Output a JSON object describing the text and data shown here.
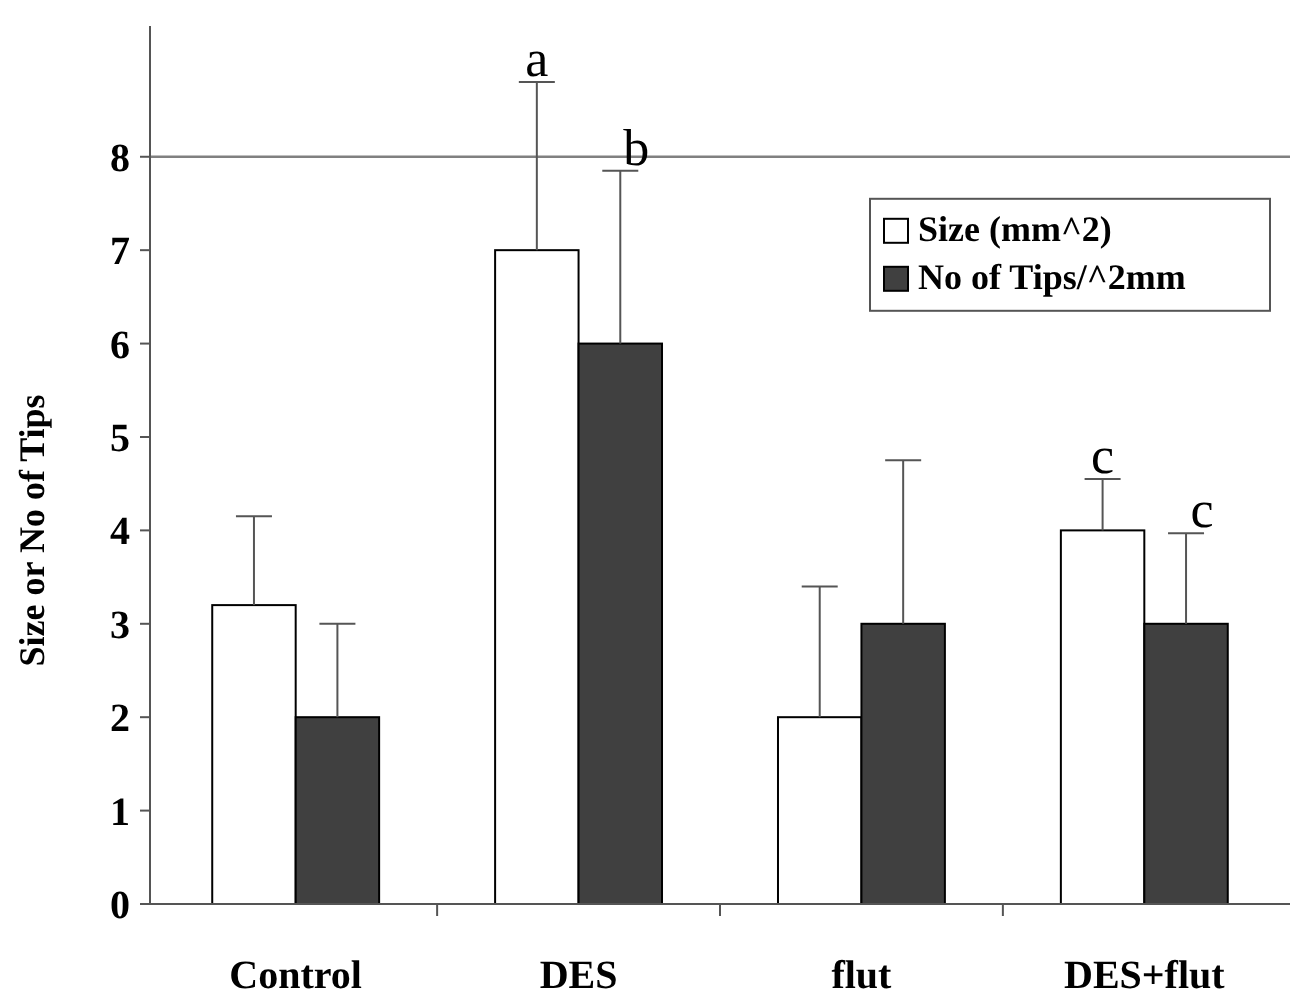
{
  "chart_data": {
    "type": "bar",
    "ylabel": "Size or No of Tips",
    "categories": [
      "Control",
      "DES",
      "flut",
      "DES+flut"
    ],
    "series": [
      {
        "name": "Size (mm^2)",
        "color": "#ffffff",
        "values": [
          3.2,
          7,
          2,
          4
        ],
        "errors": [
          [
            3.2,
            4.15
          ],
          [
            7,
            8.8
          ],
          [
            2,
            3.4
          ],
          [
            4,
            4.55
          ]
        ]
      },
      {
        "name": "No of Tips/^2mm",
        "color": "#404040",
        "values": [
          2,
          6,
          3,
          3
        ],
        "errors": [
          [
            2,
            3
          ],
          [
            6,
            7.85
          ],
          [
            3,
            4.75
          ],
          [
            3,
            3.97
          ]
        ]
      }
    ],
    "ylim": [
      0,
      9.4
    ],
    "yticks": [
      0,
      1,
      2,
      3,
      4,
      5,
      6,
      7,
      8
    ],
    "grid": false,
    "legend": "top right",
    "ref_lines": [
      {
        "axis": "y",
        "value": 8,
        "color": "#808080"
      }
    ],
    "annotations": [
      "a",
      "b",
      "c",
      "c"
    ]
  }
}
